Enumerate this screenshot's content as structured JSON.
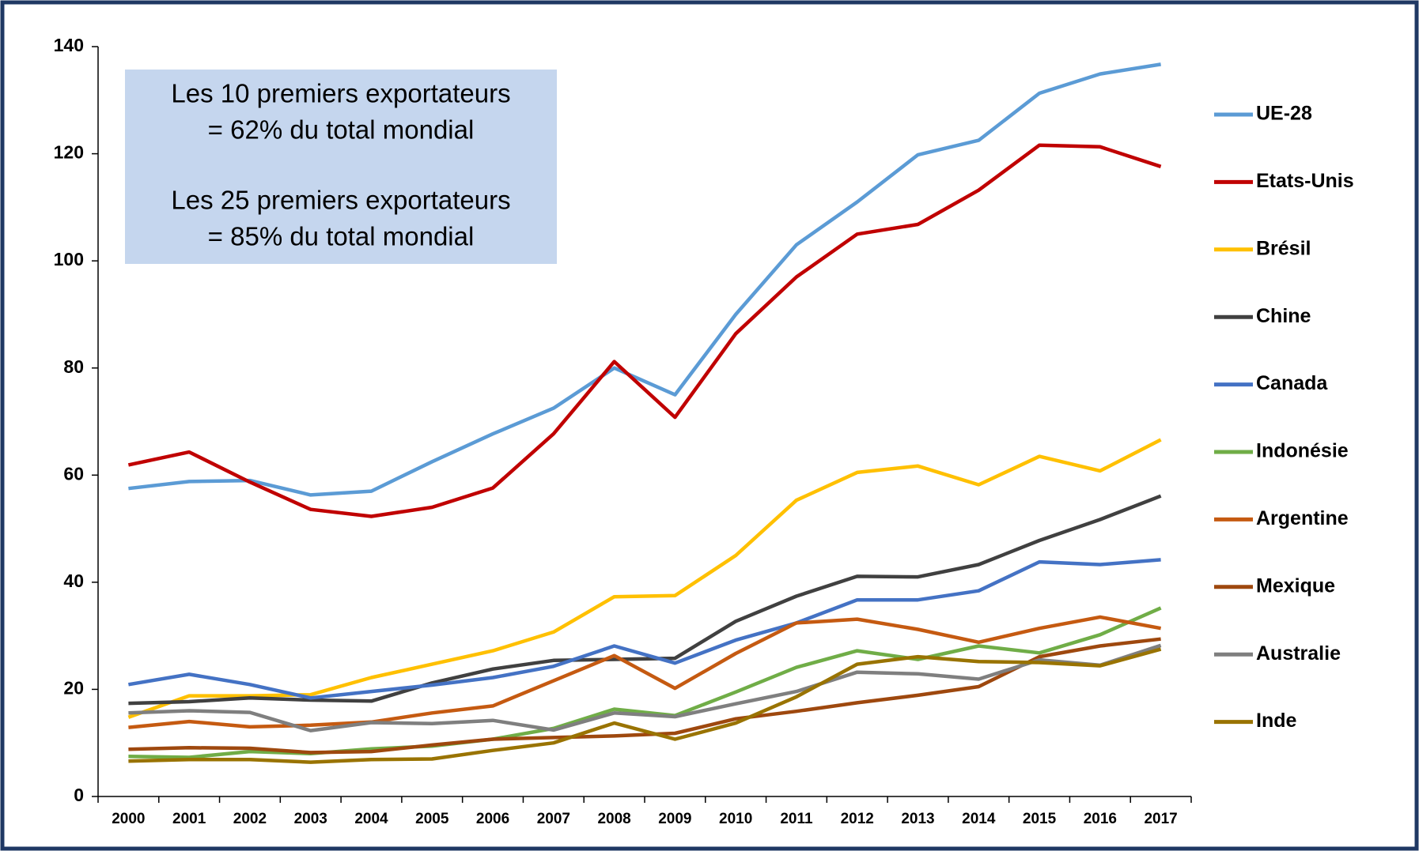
{
  "chart_data": {
    "type": "line",
    "annotation": [
      "Les 10 premiers exportateurs",
      "= 62% du total mondial",
      "Les 25 premiers exportateurs",
      "= 85% du total mondial"
    ],
    "categories": [
      "2000",
      "2001",
      "2002",
      "2003",
      "2004",
      "2005",
      "2006",
      "2007",
      "2008",
      "2009",
      "2010",
      "2011",
      "2012",
      "2013",
      "2014",
      "2015",
      "2016",
      "2017"
    ],
    "ylim": [
      0,
      140
    ],
    "yticks": [
      0,
      20,
      40,
      60,
      80,
      100,
      120,
      140
    ],
    "grid": false,
    "series": [
      {
        "name": "UE-28",
        "color": "#5b9bd5",
        "values": [
          57.5,
          58.8,
          59,
          56.3,
          57,
          62.5,
          67.7,
          72.5,
          80,
          75,
          90,
          103,
          111,
          119.8,
          122.5,
          131.3,
          134.9,
          136.7
        ]
      },
      {
        "name": "Etats-Unis",
        "color": "#c00000",
        "values": [
          61.9,
          64.3,
          58.7,
          53.6,
          52.3,
          54,
          57.6,
          67.7,
          81.2,
          70.8,
          86.4,
          97,
          105,
          106.8,
          113.2,
          121.6,
          121.3,
          117.6
        ]
      },
      {
        "name": "Brésil",
        "color": "#ffc000",
        "values": [
          14.8,
          18.8,
          18.8,
          19,
          22.2,
          24.7,
          27.2,
          30.7,
          37.3,
          37.5,
          45,
          55.3,
          60.5,
          61.7,
          58.2,
          63.5,
          60.8,
          66.6
        ]
      },
      {
        "name": "Chine",
        "color": "#404040",
        "values": [
          17.4,
          17.7,
          18.4,
          18,
          17.8,
          21.2,
          23.8,
          25.4,
          25.6,
          25.8,
          32.7,
          37.4,
          41.1,
          41,
          43.3,
          47.8,
          51.7,
          56.1
        ]
      },
      {
        "name": "Canada",
        "color": "#4472c4",
        "values": [
          20.9,
          22.8,
          20.9,
          18.4,
          19.6,
          20.8,
          22.2,
          24.3,
          28.1,
          24.9,
          29.2,
          32.4,
          36.7,
          36.7,
          38.4,
          43.8,
          43.3,
          44.2
        ]
      },
      {
        "name": "Indonésie",
        "color": "#70ad47",
        "values": [
          7.5,
          7.3,
          8.4,
          8,
          8.9,
          9.4,
          10.7,
          12.7,
          16.3,
          15.1,
          19.5,
          24.1,
          27.2,
          25.6,
          28.1,
          26.8,
          30.2,
          35.2
        ]
      },
      {
        "name": "Argentine",
        "color": "#c55a11",
        "values": [
          12.9,
          14,
          13,
          13.3,
          13.9,
          15.6,
          16.9,
          21.6,
          26.3,
          20.2,
          26.7,
          32.4,
          33.1,
          31.2,
          28.8,
          31.4,
          33.5,
          31.4
        ]
      },
      {
        "name": "Mexique",
        "color": "#9e480e",
        "values": [
          8.8,
          9.1,
          9,
          8.2,
          8.4,
          9.6,
          10.7,
          11,
          11.3,
          11.8,
          14.5,
          15.9,
          17.5,
          18.9,
          20.5,
          26.1,
          28.1,
          29.4
        ]
      },
      {
        "name": "Australie",
        "color": "#7f7f7f",
        "values": [
          15.6,
          16,
          15.7,
          12.3,
          13.8,
          13.6,
          14.2,
          12.4,
          15.6,
          14.9,
          17.3,
          19.6,
          23.2,
          22.9,
          21.9,
          25.5,
          24.5,
          28.2
        ]
      },
      {
        "name": "Inde",
        "color": "#997300",
        "values": [
          6.6,
          6.9,
          6.9,
          6.4,
          6.9,
          7,
          8.6,
          10,
          13.7,
          10.7,
          13.7,
          18.6,
          24.7,
          26.1,
          25.2,
          25,
          24.4,
          27.5
        ]
      }
    ]
  }
}
